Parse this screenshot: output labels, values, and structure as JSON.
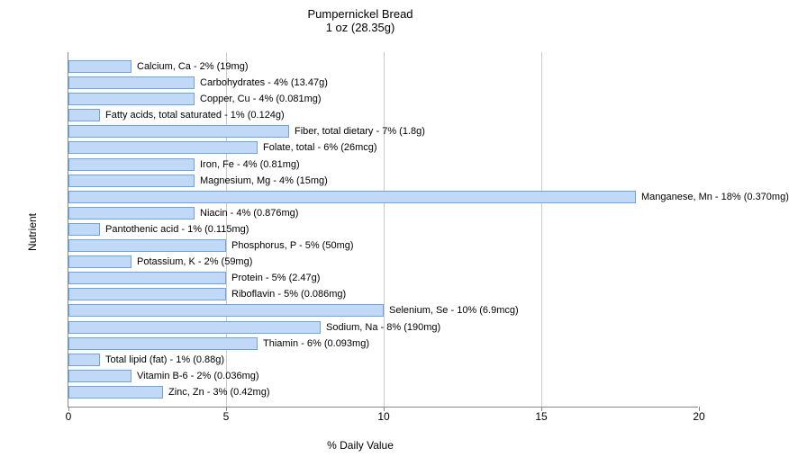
{
  "title": "Pumpernickel Bread",
  "subtitle": "1 oz (28.35g)",
  "y_axis_label": "Nutrient",
  "x_axis_label": "% Daily Value",
  "chart": {
    "type": "bar",
    "orientation": "horizontal",
    "xlim": [
      0,
      20
    ],
    "xticks": [
      0,
      5,
      10,
      15,
      20
    ],
    "bar_fill": "#c1d9f7",
    "bar_stroke": "#6ba3e8",
    "grid_color": "#cccccc",
    "axis_color": "#888888",
    "background": "#ffffff",
    "label_fontsize": 11,
    "axis_fontsize": 12,
    "title_fontsize": 13,
    "nutrients": [
      {
        "label": "Calcium, Ca - 2% (19mg)",
        "value": 2
      },
      {
        "label": "Carbohydrates - 4% (13.47g)",
        "value": 4
      },
      {
        "label": "Copper, Cu - 4% (0.081mg)",
        "value": 4
      },
      {
        "label": "Fatty acids, total saturated - 1% (0.124g)",
        "value": 1
      },
      {
        "label": "Fiber, total dietary - 7% (1.8g)",
        "value": 7
      },
      {
        "label": "Folate, total - 6% (26mcg)",
        "value": 6
      },
      {
        "label": "Iron, Fe - 4% (0.81mg)",
        "value": 4
      },
      {
        "label": "Magnesium, Mg - 4% (15mg)",
        "value": 4
      },
      {
        "label": "Manganese, Mn - 18% (0.370mg)",
        "value": 18
      },
      {
        "label": "Niacin - 4% (0.876mg)",
        "value": 4
      },
      {
        "label": "Pantothenic acid - 1% (0.115mg)",
        "value": 1
      },
      {
        "label": "Phosphorus, P - 5% (50mg)",
        "value": 5
      },
      {
        "label": "Potassium, K - 2% (59mg)",
        "value": 2
      },
      {
        "label": "Protein - 5% (2.47g)",
        "value": 5
      },
      {
        "label": "Riboflavin - 5% (0.086mg)",
        "value": 5
      },
      {
        "label": "Selenium, Se - 10% (6.9mcg)",
        "value": 10
      },
      {
        "label": "Sodium, Na - 8% (190mg)",
        "value": 8
      },
      {
        "label": "Thiamin - 6% (0.093mg)",
        "value": 6
      },
      {
        "label": "Total lipid (fat) - 1% (0.88g)",
        "value": 1
      },
      {
        "label": "Vitamin B-6 - 2% (0.036mg)",
        "value": 2
      },
      {
        "label": "Zinc, Zn - 3% (0.42mg)",
        "value": 3
      }
    ]
  }
}
